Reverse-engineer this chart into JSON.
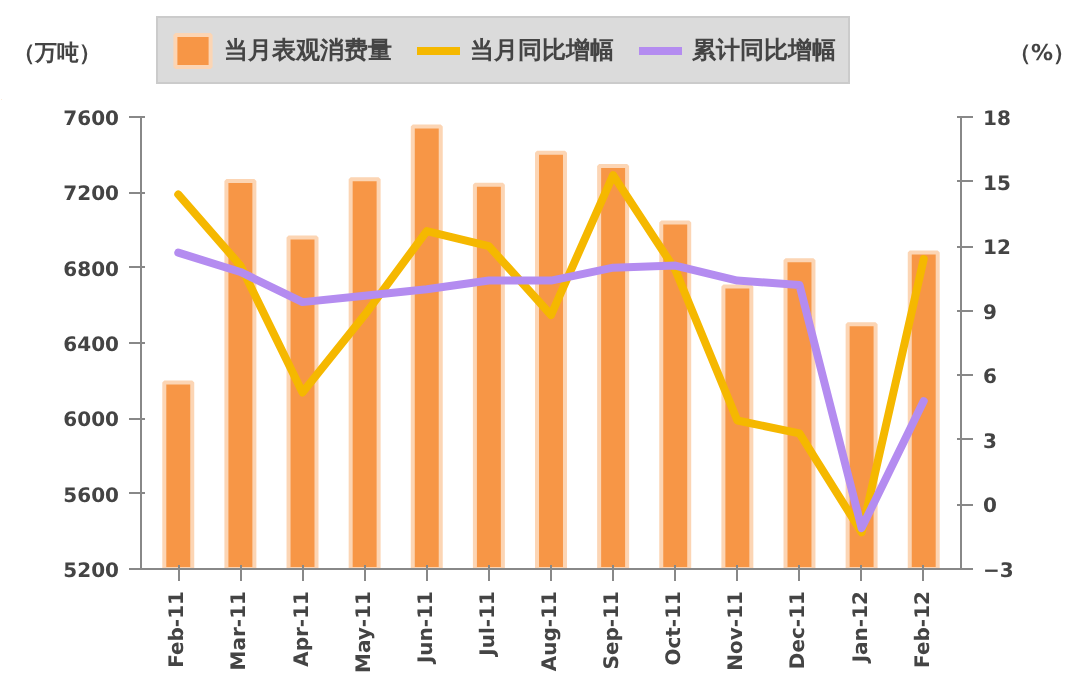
{
  "chart_data": {
    "type": "bar",
    "categories": [
      "Feb-11",
      "Mar-11",
      "Apr-11",
      "May-11",
      "Jun-11",
      "Jul-11",
      "Aug-11",
      "Sep-11",
      "Oct-11",
      "Nov-11",
      "Dec-11",
      "Jan-12",
      "Feb-12"
    ],
    "ylabel": "（万吨）",
    "y2label": "（%）",
    "ylim": [
      5200,
      7600
    ],
    "yticks": [
      5200,
      5600,
      6000,
      6400,
      6800,
      7200,
      7600
    ],
    "y2lim": [
      -3,
      18
    ],
    "y2ticks": [
      -3,
      0,
      3,
      6,
      9,
      12,
      15,
      18
    ],
    "legend": "top",
    "grid": false,
    "series": [
      {
        "name": "当月表观消费量",
        "color": "#f79646",
        "values": [
          6190,
          7260,
          6960,
          7270,
          7550,
          7240,
          7410,
          7340,
          7040,
          6700,
          6840,
          6500,
          6880
        ]
      },
      {
        "name": "当月同比增幅",
        "type": "line",
        "axis": "y2",
        "color": "#f5b800",
        "values": [
          14.4,
          11.1,
          5.2,
          8.8,
          12.7,
          12.0,
          8.8,
          15.3,
          10.9,
          3.9,
          3.3,
          -1.3,
          11.4
        ]
      },
      {
        "name": "累计同比增幅",
        "type": "line",
        "axis": "y2",
        "color": "#b48cf0",
        "values": [
          11.7,
          10.8,
          9.4,
          9.7,
          10.0,
          10.4,
          10.4,
          11.0,
          11.1,
          10.4,
          10.2,
          -1.1,
          4.8
        ]
      }
    ]
  }
}
